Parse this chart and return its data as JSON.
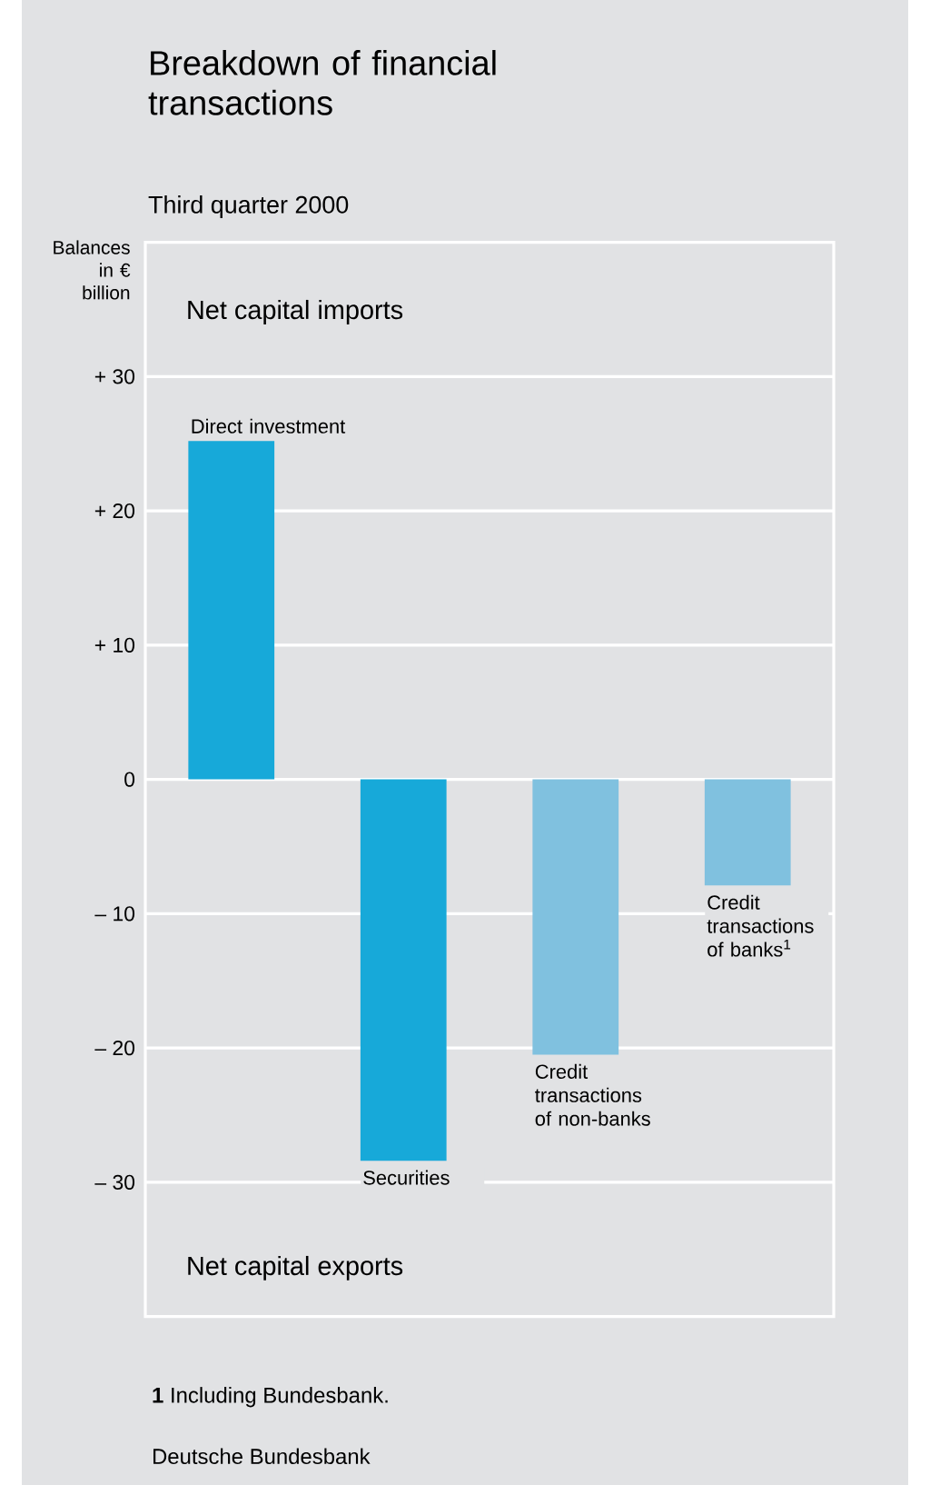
{
  "chart_data": {
    "type": "bar",
    "title": "Breakdown of financial transactions",
    "subtitle": "Third quarter 2000",
    "ylabel": "Balances in € billion",
    "categories": [
      "Direct investment",
      "Securities",
      "Credit transactions of non-banks",
      "Credit transactions of banks$^{1}$"
    ],
    "values": [
      25.2,
      -28.4,
      -20.5,
      -7.9
    ],
    "colors": [
      "#17a9d9",
      "#17a9d9",
      "#80c1df",
      "#80c1df"
    ],
    "ylim": [
      -40,
      40
    ],
    "yticks": [
      {
        "value": 30,
        "label": "+ 30"
      },
      {
        "value": 20,
        "label": "+ 20"
      },
      {
        "value": 10,
        "label": "+ 10"
      },
      0,
      {
        "value": -10,
        "label": "– 10"
      },
      {
        "value": -20,
        "label": "– 20"
      },
      {
        "value": -30,
        "label": "– 30"
      }
    ],
    "grid": "y",
    "annotations": [
      "Net capital imports",
      "Net capital exports",
      "**1** Including Bundesbank.",
      "Deutsche Bundesbank"
    ]
  }
}
